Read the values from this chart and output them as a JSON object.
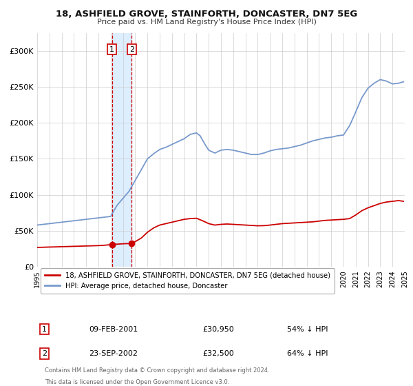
{
  "title": "18, ASHFIELD GROVE, STAINFORTH, DONCASTER, DN7 5EG",
  "subtitle": "Price paid vs. HM Land Registry's House Price Index (HPI)",
  "red_label": "18, ASHFIELD GROVE, STAINFORTH, DONCASTER, DN7 5EG (detached house)",
  "blue_label": "HPI: Average price, detached house, Doncaster",
  "transaction1_date": "09-FEB-2001",
  "transaction1_price": 30950,
  "transaction1_hpi": "54% ↓ HPI",
  "transaction1_x": 2001.1,
  "transaction2_date": "23-SEP-2002",
  "transaction2_price": 32500,
  "transaction2_hpi": "64% ↓ HPI",
  "transaction2_x": 2002.72,
  "ylim": [
    0,
    325000
  ],
  "xlim_start": 1995,
  "xlim_end": 2025,
  "background_color": "#ffffff",
  "grid_color": "#cccccc",
  "red_color": "#cc0000",
  "blue_color": "#7799cc",
  "shade_color": "#ddeeff",
  "footnote1": "Contains HM Land Registry data © Crown copyright and database right 2024.",
  "footnote2": "This data is licensed under the Open Government Licence v3.0.",
  "hpi_years": [
    1995.0,
    1995.5,
    1996.0,
    1996.5,
    1997.0,
    1997.5,
    1998.0,
    1998.5,
    1999.0,
    1999.5,
    2000.0,
    2000.5,
    2001.0,
    2001.5,
    2002.0,
    2002.5,
    2003.0,
    2003.5,
    2004.0,
    2004.5,
    2005.0,
    2005.5,
    2006.0,
    2006.5,
    2007.0,
    2007.5,
    2008.0,
    2008.3,
    2008.7,
    2009.0,
    2009.5,
    2010.0,
    2010.5,
    2011.0,
    2011.5,
    2012.0,
    2012.5,
    2013.0,
    2013.5,
    2014.0,
    2014.5,
    2015.0,
    2015.5,
    2016.0,
    2016.5,
    2017.0,
    2017.5,
    2018.0,
    2018.5,
    2019.0,
    2019.5,
    2020.0,
    2020.5,
    2021.0,
    2021.5,
    2022.0,
    2022.5,
    2023.0,
    2023.5,
    2024.0,
    2024.5,
    2024.9
  ],
  "hpi_values": [
    58000,
    59000,
    60000,
    61000,
    62000,
    63000,
    64000,
    65000,
    66000,
    67000,
    68000,
    69000,
    70000,
    85000,
    95000,
    105000,
    120000,
    135000,
    150000,
    157000,
    163000,
    166000,
    170000,
    174000,
    178000,
    184000,
    186000,
    182000,
    170000,
    162000,
    158000,
    162000,
    163000,
    162000,
    160000,
    158000,
    156000,
    156000,
    158000,
    161000,
    163000,
    164000,
    165000,
    167000,
    169000,
    172000,
    175000,
    177000,
    179000,
    180000,
    182000,
    183000,
    196000,
    215000,
    235000,
    248000,
    255000,
    260000,
    258000,
    254000,
    255000,
    257000
  ],
  "red_years": [
    1995.0,
    1995.5,
    1996.0,
    1996.5,
    1997.0,
    1997.5,
    1998.0,
    1998.5,
    1999.0,
    1999.5,
    2000.0,
    2000.5,
    2001.1,
    2001.5,
    2002.0,
    2002.72,
    2003.0,
    2003.5,
    2004.0,
    2004.5,
    2005.0,
    2005.5,
    2006.0,
    2006.5,
    2007.0,
    2007.5,
    2008.0,
    2008.5,
    2009.0,
    2009.5,
    2010.0,
    2010.5,
    2011.0,
    2011.5,
    2012.0,
    2012.5,
    2013.0,
    2013.5,
    2014.0,
    2014.5,
    2015.0,
    2015.5,
    2016.0,
    2016.5,
    2017.0,
    2017.5,
    2018.0,
    2018.5,
    2019.0,
    2019.5,
    2020.0,
    2020.5,
    2021.0,
    2021.5,
    2022.0,
    2022.5,
    2023.0,
    2023.5,
    2024.0,
    2024.5,
    2024.9
  ],
  "red_values": [
    27000,
    27200,
    27500,
    27700,
    28000,
    28200,
    28500,
    28700,
    29000,
    29200,
    29500,
    30000,
    30950,
    31500,
    32000,
    32500,
    35000,
    40000,
    48000,
    54000,
    58000,
    60000,
    62000,
    64000,
    66000,
    67000,
    67500,
    64000,
    60000,
    58000,
    59000,
    59500,
    59000,
    58500,
    58000,
    57500,
    57000,
    57200,
    58000,
    59000,
    60000,
    60500,
    61000,
    61500,
    62000,
    62500,
    63500,
    64500,
    65000,
    65500,
    66000,
    67000,
    72000,
    78000,
    82000,
    85000,
    88000,
    90000,
    91000,
    92000,
    91000
  ]
}
